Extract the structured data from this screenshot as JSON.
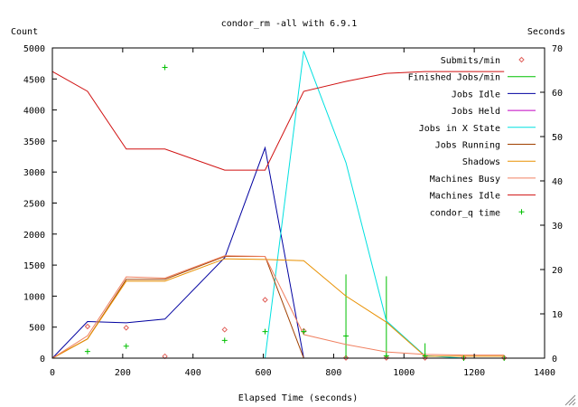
{
  "chart_data": {
    "type": "line",
    "title": "condor_rm -all with 6.9.1",
    "xlabel": "Elapsed Time (seconds)",
    "ylabel_left": "Count",
    "ylabel_right": "Seconds",
    "xlim": [
      0,
      1400
    ],
    "ylim_left": [
      0,
      5000
    ],
    "ylim_right": [
      0,
      70
    ],
    "xticks": [
      0,
      200,
      400,
      600,
      800,
      1000,
      1200,
      1400
    ],
    "yticks_left": [
      0,
      500,
      1000,
      1500,
      2000,
      2500,
      3000,
      3500,
      4000,
      4500,
      5000
    ],
    "yticks_right": [
      0,
      10,
      20,
      30,
      40,
      50,
      60,
      70
    ],
    "grid": false,
    "legend_position": "top-right",
    "series": [
      {
        "name": "Submits/min",
        "axis": "left",
        "style": "points",
        "marker": "diamond",
        "color": "#e0605a",
        "points": [
          [
            100,
            510
          ],
          [
            210,
            490
          ],
          [
            320,
            30
          ],
          [
            490,
            460
          ],
          [
            605,
            940
          ],
          [
            715,
            440
          ],
          [
            835,
            5
          ],
          [
            950,
            5
          ],
          [
            1060,
            5
          ],
          [
            1170,
            5
          ],
          [
            1285,
            5
          ]
        ]
      },
      {
        "name": "Finished Jobs/min",
        "axis": "left",
        "style": "impulses",
        "color": "#00c000",
        "points": [
          [
            835,
            1350
          ],
          [
            950,
            1320
          ],
          [
            1060,
            240
          ]
        ]
      },
      {
        "name": "Jobs Idle",
        "axis": "left",
        "style": "line",
        "color": "#0000a0",
        "points": [
          [
            0,
            0
          ],
          [
            100,
            590
          ],
          [
            210,
            570
          ],
          [
            320,
            630
          ],
          [
            490,
            1620
          ],
          [
            605,
            3390
          ],
          [
            715,
            0
          ],
          [
            835,
            0
          ],
          [
            950,
            0
          ],
          [
            1060,
            0
          ],
          [
            1170,
            0
          ],
          [
            1285,
            0
          ]
        ]
      },
      {
        "name": "Jobs Held",
        "axis": "left",
        "style": "line",
        "color": "#c000c0",
        "points": [
          [
            0,
            0
          ],
          [
            1285,
            0
          ]
        ]
      },
      {
        "name": "Jobs in X State",
        "axis": "left",
        "style": "line",
        "color": "#00e0e0",
        "points": [
          [
            0,
            0
          ],
          [
            605,
            0
          ],
          [
            715,
            4950
          ],
          [
            835,
            3150
          ],
          [
            950,
            600
          ],
          [
            1060,
            40
          ],
          [
            1170,
            0
          ],
          [
            1285,
            0
          ]
        ]
      },
      {
        "name": "Jobs Running",
        "axis": "left",
        "style": "line",
        "color": "#a04000",
        "points": [
          [
            0,
            0
          ],
          [
            100,
            310
          ],
          [
            210,
            1270
          ],
          [
            320,
            1270
          ],
          [
            490,
            1640
          ],
          [
            605,
            1640
          ],
          [
            715,
            0
          ],
          [
            835,
            0
          ],
          [
            950,
            0
          ],
          [
            1060,
            0
          ],
          [
            1170,
            0
          ],
          [
            1285,
            0
          ]
        ]
      },
      {
        "name": "Shadows",
        "axis": "left",
        "style": "line",
        "color": "#e89000",
        "points": [
          [
            0,
            0
          ],
          [
            100,
            310
          ],
          [
            210,
            1240
          ],
          [
            320,
            1240
          ],
          [
            490,
            1600
          ],
          [
            605,
            1590
          ],
          [
            715,
            1570
          ],
          [
            835,
            1000
          ],
          [
            950,
            580
          ],
          [
            1060,
            30
          ],
          [
            1170,
            30
          ],
          [
            1285,
            30
          ]
        ]
      },
      {
        "name": "Machines Busy",
        "axis": "left",
        "style": "line",
        "color": "#f08060",
        "points": [
          [
            0,
            0
          ],
          [
            100,
            360
          ],
          [
            210,
            1310
          ],
          [
            320,
            1290
          ],
          [
            490,
            1650
          ],
          [
            605,
            1640
          ],
          [
            715,
            380
          ],
          [
            835,
            220
          ],
          [
            950,
            100
          ],
          [
            1060,
            60
          ],
          [
            1170,
            50
          ],
          [
            1285,
            50
          ]
        ]
      },
      {
        "name": "Machines Idle",
        "axis": "left",
        "style": "line",
        "color": "#d01010",
        "points": [
          [
            0,
            4620
          ],
          [
            100,
            4300
          ],
          [
            210,
            3370
          ],
          [
            320,
            3370
          ],
          [
            490,
            3030
          ],
          [
            605,
            3030
          ],
          [
            715,
            4300
          ],
          [
            835,
            4460
          ],
          [
            950,
            4590
          ],
          [
            1060,
            4620
          ],
          [
            1170,
            4620
          ],
          [
            1285,
            4620
          ]
        ]
      },
      {
        "name": "condor_q time",
        "axis": "right",
        "style": "points",
        "marker": "plus",
        "color": "#00c000",
        "points": [
          [
            100,
            1.5
          ],
          [
            210,
            2.7
          ],
          [
            320,
            65.6
          ],
          [
            490,
            4.0
          ],
          [
            605,
            6.0
          ],
          [
            715,
            6.0
          ],
          [
            835,
            5.0
          ],
          [
            950,
            0.5
          ],
          [
            1060,
            0.5
          ],
          [
            1170,
            0.0
          ],
          [
            1285,
            0.0
          ]
        ]
      }
    ]
  }
}
